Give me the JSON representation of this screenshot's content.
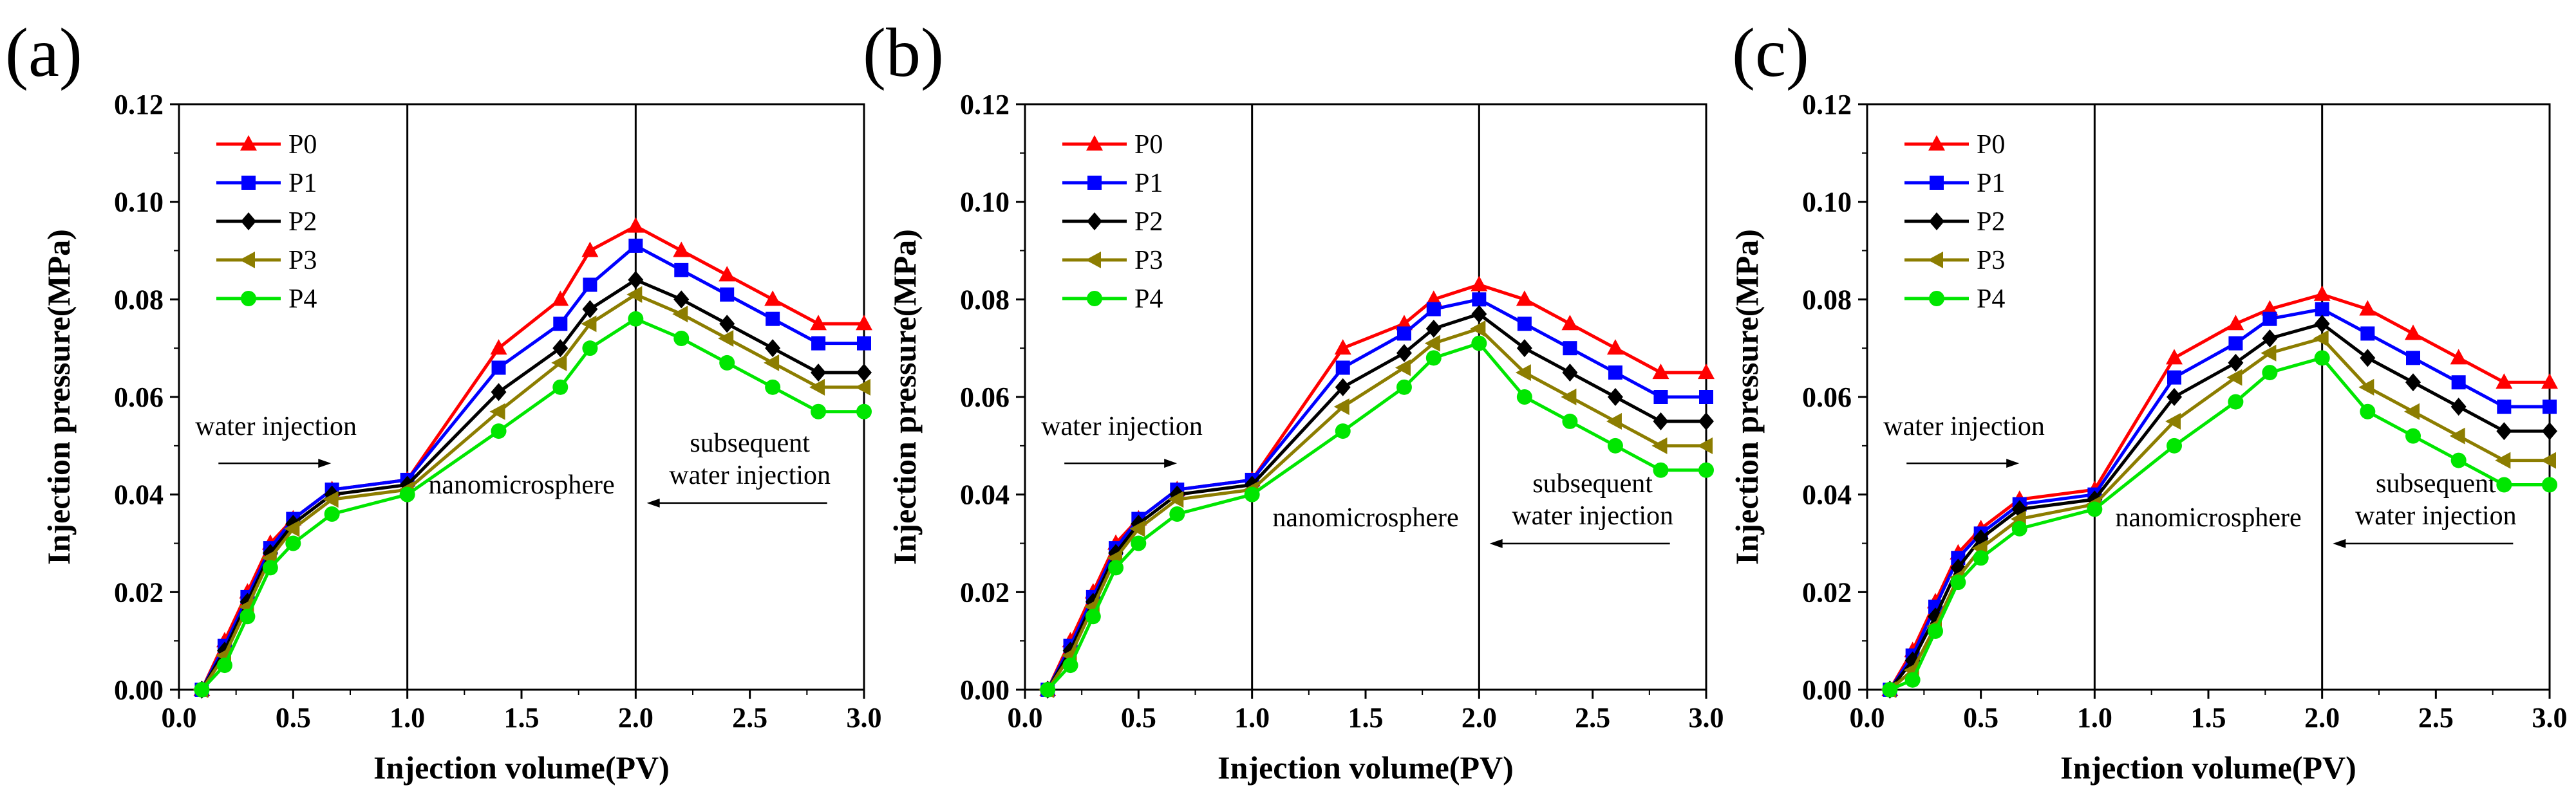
{
  "chart_data": [
    {
      "panel_label": "(a)",
      "type": "line",
      "xlabel": "Injection volume(PV)",
      "ylabel": "Injection pressure(MPa)",
      "xlim": [
        0,
        3
      ],
      "ylim": [
        0,
        0.12
      ],
      "x_ticks": [
        "0.0",
        "0.5",
        "1.0",
        "1.5",
        "2.0",
        "2.5",
        "3.0"
      ],
      "y_ticks": [
        "0.00",
        "0.02",
        "0.04",
        "0.06",
        "0.08",
        "0.10",
        "0.12"
      ],
      "stage_boundaries": [
        1.0,
        2.0
      ],
      "annotations": [
        {
          "text": "water injection",
          "arrow": "right"
        },
        {
          "text": "nanomicrosphere"
        },
        {
          "text": "subsequent",
          "line2": "water injection",
          "arrow": "left"
        }
      ],
      "legend_position": "top-left",
      "series": [
        {
          "name": "P0",
          "color": "#ff0000",
          "marker": "triangle-up",
          "x": [
            0.1,
            0.2,
            0.3,
            0.4,
            0.5,
            0.67,
            1.0,
            1.4,
            1.67,
            1.8,
            2.0,
            2.2,
            2.4,
            2.6,
            2.8,
            3.0
          ],
          "y": [
            0,
            0.01,
            0.02,
            0.03,
            0.035,
            0.041,
            0.043,
            0.07,
            0.08,
            0.09,
            0.095,
            0.09,
            0.085,
            0.08,
            0.075,
            0.075
          ]
        },
        {
          "name": "P1",
          "color": "#0000ff",
          "marker": "square",
          "x": [
            0.1,
            0.2,
            0.3,
            0.4,
            0.5,
            0.67,
            1.0,
            1.4,
            1.67,
            1.8,
            2.0,
            2.2,
            2.4,
            2.6,
            2.8,
            3.0
          ],
          "y": [
            0,
            0.009,
            0.019,
            0.029,
            0.035,
            0.041,
            0.043,
            0.066,
            0.075,
            0.083,
            0.091,
            0.086,
            0.081,
            0.076,
            0.071,
            0.071
          ]
        },
        {
          "name": "P2",
          "color": "#000000",
          "marker": "diamond",
          "x": [
            0.1,
            0.2,
            0.3,
            0.4,
            0.5,
            0.67,
            1.0,
            1.4,
            1.67,
            1.8,
            2.0,
            2.2,
            2.4,
            2.6,
            2.8,
            3.0
          ],
          "y": [
            0,
            0.008,
            0.018,
            0.028,
            0.034,
            0.04,
            0.042,
            0.061,
            0.07,
            0.078,
            0.084,
            0.08,
            0.075,
            0.07,
            0.065,
            0.065
          ]
        },
        {
          "name": "P3",
          "color": "#8c7d00",
          "marker": "triangle-left",
          "x": [
            0.1,
            0.2,
            0.3,
            0.4,
            0.5,
            0.67,
            1.0,
            1.4,
            1.67,
            1.8,
            2.0,
            2.2,
            2.4,
            2.6,
            2.8,
            3.0
          ],
          "y": [
            0,
            0.007,
            0.017,
            0.027,
            0.033,
            0.039,
            0.041,
            0.057,
            0.067,
            0.075,
            0.081,
            0.077,
            0.072,
            0.067,
            0.062,
            0.062
          ]
        },
        {
          "name": "P4",
          "color": "#00e600",
          "marker": "circle",
          "x": [
            0.1,
            0.2,
            0.3,
            0.4,
            0.5,
            0.67,
            1.0,
            1.4,
            1.67,
            1.8,
            2.0,
            2.2,
            2.4,
            2.6,
            2.8,
            3.0
          ],
          "y": [
            0,
            0.005,
            0.015,
            0.025,
            0.03,
            0.036,
            0.04,
            0.053,
            0.062,
            0.07,
            0.076,
            0.072,
            0.067,
            0.062,
            0.057,
            0.057
          ]
        }
      ]
    },
    {
      "panel_label": "(b)",
      "type": "line",
      "xlabel": "Injection volume(PV)",
      "ylabel": "Injection pressure(MPa)",
      "xlim": [
        0,
        3
      ],
      "ylim": [
        0,
        0.12
      ],
      "x_ticks": [
        "0.0",
        "0.5",
        "1.0",
        "1.5",
        "2.0",
        "2.5",
        "3.0"
      ],
      "y_ticks": [
        "0.00",
        "0.02",
        "0.04",
        "0.06",
        "0.08",
        "0.10",
        "0.12"
      ],
      "stage_boundaries": [
        1.0,
        2.0
      ],
      "annotations": [
        {
          "text": "water injection",
          "arrow": "right"
        },
        {
          "text": "nanomicrosphere"
        },
        {
          "text": "subsequent",
          "line2": "water injection",
          "arrow": "left"
        }
      ],
      "legend_position": "top-left",
      "series": [
        {
          "name": "P0",
          "color": "#ff0000",
          "marker": "triangle-up",
          "x": [
            0.1,
            0.2,
            0.3,
            0.4,
            0.5,
            0.67,
            1.0,
            1.4,
            1.67,
            1.8,
            2.0,
            2.2,
            2.4,
            2.6,
            2.8,
            3.0
          ],
          "y": [
            0,
            0.01,
            0.02,
            0.03,
            0.035,
            0.041,
            0.043,
            0.07,
            0.075,
            0.08,
            0.083,
            0.08,
            0.075,
            0.07,
            0.065,
            0.065
          ]
        },
        {
          "name": "P1",
          "color": "#0000ff",
          "marker": "square",
          "x": [
            0.1,
            0.2,
            0.3,
            0.4,
            0.5,
            0.67,
            1.0,
            1.4,
            1.67,
            1.8,
            2.0,
            2.2,
            2.4,
            2.6,
            2.8,
            3.0
          ],
          "y": [
            0,
            0.009,
            0.019,
            0.029,
            0.035,
            0.041,
            0.043,
            0.066,
            0.073,
            0.078,
            0.08,
            0.075,
            0.07,
            0.065,
            0.06,
            0.06
          ]
        },
        {
          "name": "P2",
          "color": "#000000",
          "marker": "diamond",
          "x": [
            0.1,
            0.2,
            0.3,
            0.4,
            0.5,
            0.67,
            1.0,
            1.4,
            1.67,
            1.8,
            2.0,
            2.2,
            2.4,
            2.6,
            2.8,
            3.0
          ],
          "y": [
            0,
            0.008,
            0.018,
            0.028,
            0.034,
            0.04,
            0.042,
            0.062,
            0.069,
            0.074,
            0.077,
            0.07,
            0.065,
            0.06,
            0.055,
            0.055
          ]
        },
        {
          "name": "P3",
          "color": "#8c7d00",
          "marker": "triangle-left",
          "x": [
            0.1,
            0.2,
            0.3,
            0.4,
            0.5,
            0.67,
            1.0,
            1.4,
            1.67,
            1.8,
            2.0,
            2.2,
            2.4,
            2.6,
            2.8,
            3.0
          ],
          "y": [
            0,
            0.007,
            0.017,
            0.027,
            0.033,
            0.039,
            0.041,
            0.058,
            0.066,
            0.071,
            0.074,
            0.065,
            0.06,
            0.055,
            0.05,
            0.05
          ]
        },
        {
          "name": "P4",
          "color": "#00e600",
          "marker": "circle",
          "x": [
            0.1,
            0.2,
            0.3,
            0.4,
            0.5,
            0.67,
            1.0,
            1.4,
            1.67,
            1.8,
            2.0,
            2.2,
            2.4,
            2.6,
            2.8,
            3.0
          ],
          "y": [
            0,
            0.005,
            0.015,
            0.025,
            0.03,
            0.036,
            0.04,
            0.053,
            0.062,
            0.068,
            0.071,
            0.06,
            0.055,
            0.05,
            0.045,
            0.045
          ]
        }
      ]
    },
    {
      "panel_label": "(c)",
      "type": "line",
      "xlabel": "Injection volume(PV)",
      "ylabel": "Injection pressure(MPa)",
      "xlim": [
        0,
        3
      ],
      "ylim": [
        0,
        0.12
      ],
      "x_ticks": [
        "0.0",
        "0.5",
        "1.0",
        "1.5",
        "2.0",
        "2.5",
        "3.0"
      ],
      "y_ticks": [
        "0.00",
        "0.02",
        "0.04",
        "0.06",
        "0.08",
        "0.10",
        "0.12"
      ],
      "stage_boundaries": [
        1.0,
        2.0
      ],
      "annotations": [
        {
          "text": "water injection",
          "arrow": "right"
        },
        {
          "text": "nanomicrosphere"
        },
        {
          "text": "subsequent",
          "line2": "water injection",
          "arrow": "left"
        }
      ],
      "legend_position": "top-left",
      "series": [
        {
          "name": "P0",
          "color": "#ff0000",
          "marker": "triangle-up",
          "x": [
            0.1,
            0.2,
            0.3,
            0.4,
            0.5,
            0.67,
            1.0,
            1.35,
            1.62,
            1.77,
            2.0,
            2.2,
            2.4,
            2.6,
            2.8,
            3.0
          ],
          "y": [
            0,
            0.008,
            0.018,
            0.028,
            0.033,
            0.039,
            0.041,
            0.068,
            0.075,
            0.078,
            0.081,
            0.078,
            0.073,
            0.068,
            0.063,
            0.063
          ]
        },
        {
          "name": "P1",
          "color": "#0000ff",
          "marker": "square",
          "x": [
            0.1,
            0.2,
            0.3,
            0.4,
            0.5,
            0.67,
            1.0,
            1.35,
            1.62,
            1.77,
            2.0,
            2.2,
            2.4,
            2.6,
            2.8,
            3.0
          ],
          "y": [
            0,
            0.007,
            0.017,
            0.027,
            0.032,
            0.038,
            0.04,
            0.064,
            0.071,
            0.076,
            0.078,
            0.073,
            0.068,
            0.063,
            0.058,
            0.058
          ]
        },
        {
          "name": "P2",
          "color": "#000000",
          "marker": "diamond",
          "x": [
            0.1,
            0.2,
            0.3,
            0.4,
            0.5,
            0.67,
            1.0,
            1.35,
            1.62,
            1.77,
            2.0,
            2.2,
            2.4,
            2.6,
            2.8,
            3.0
          ],
          "y": [
            0,
            0.006,
            0.015,
            0.025,
            0.031,
            0.037,
            0.039,
            0.06,
            0.067,
            0.072,
            0.075,
            0.068,
            0.063,
            0.058,
            0.053,
            0.053
          ]
        },
        {
          "name": "P3",
          "color": "#8c7d00",
          "marker": "triangle-left",
          "x": [
            0.1,
            0.2,
            0.3,
            0.4,
            0.5,
            0.67,
            1.0,
            1.35,
            1.62,
            1.77,
            2.0,
            2.2,
            2.4,
            2.6,
            2.8,
            3.0
          ],
          "y": [
            0,
            0.004,
            0.013,
            0.023,
            0.029,
            0.035,
            0.038,
            0.055,
            0.064,
            0.069,
            0.072,
            0.062,
            0.057,
            0.052,
            0.047,
            0.047
          ]
        },
        {
          "name": "P4",
          "color": "#00e600",
          "marker": "circle",
          "x": [
            0.1,
            0.2,
            0.3,
            0.4,
            0.5,
            0.67,
            1.0,
            1.35,
            1.62,
            1.77,
            2.0,
            2.2,
            2.4,
            2.6,
            2.8,
            3.0
          ],
          "y": [
            0,
            0.002,
            0.012,
            0.022,
            0.027,
            0.033,
            0.037,
            0.05,
            0.059,
            0.065,
            0.068,
            0.057,
            0.052,
            0.047,
            0.042,
            0.042
          ]
        }
      ]
    }
  ]
}
